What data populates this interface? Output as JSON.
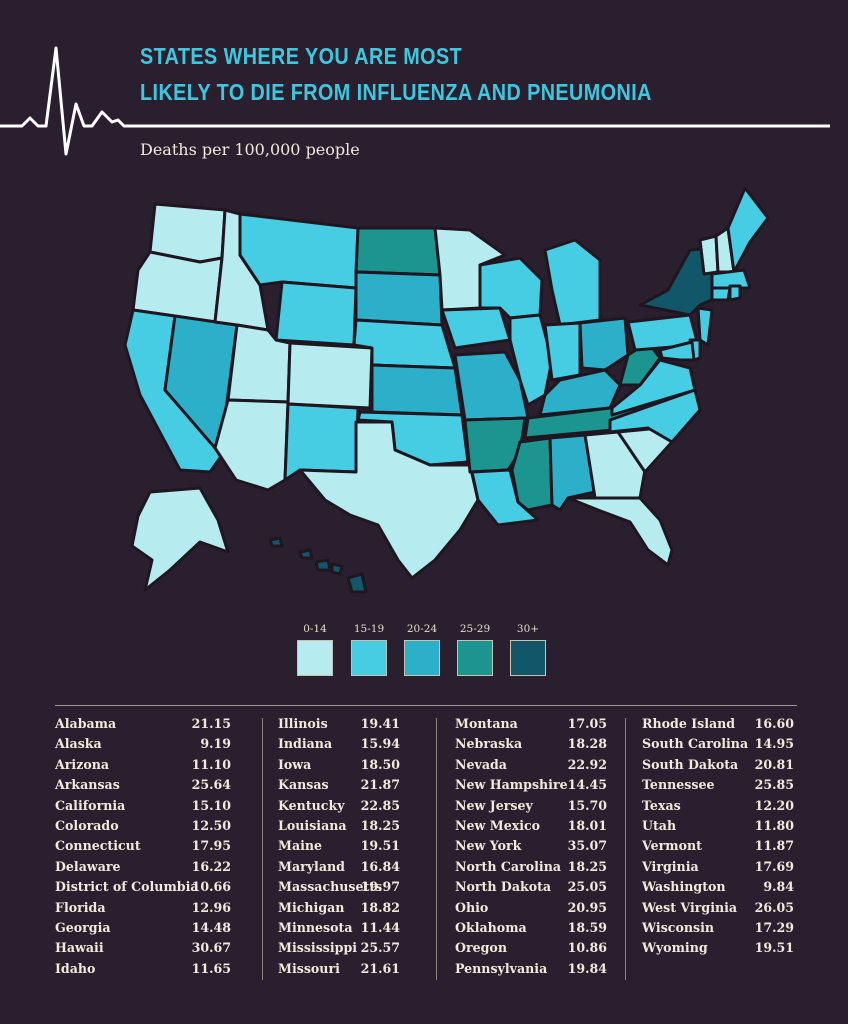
{
  "title": {
    "line1": "STATES WHERE YOU ARE MOST",
    "line2": "LIKELY TO DIE FROM INFLUENZA AND PNEUMONIA"
  },
  "subtitle": "Deaths per 100,000 people",
  "colors": {
    "background": "#2a1f2e",
    "title": "#3ec8e0",
    "bin_0_14": "#b6ebf0",
    "bin_15_19": "#46cde3",
    "bin_20_24": "#2cb0c9",
    "bin_25_29": "#1c9590",
    "bin_30_plus": "#12566a"
  },
  "legend": [
    {
      "label": "0-14",
      "color": "#b6ebf0"
    },
    {
      "label": "15-19",
      "color": "#46cde3"
    },
    {
      "label": "20-24",
      "color": "#2cb0c9"
    },
    {
      "label": "25-29",
      "color": "#1c9590"
    },
    {
      "label": "30+",
      "color": "#12566a"
    }
  ],
  "chart_data": {
    "type": "table",
    "columns": [
      "State",
      "Deaths per 100,000 people"
    ],
    "rows": [
      [
        "Alabama",
        "21.15"
      ],
      [
        "Alaska",
        "9.19"
      ],
      [
        "Arizona",
        "11.10"
      ],
      [
        "Arkansas",
        "25.64"
      ],
      [
        "California",
        "15.10"
      ],
      [
        "Colorado",
        "12.50"
      ],
      [
        "Connecticut",
        "17.95"
      ],
      [
        "Delaware",
        "16.22"
      ],
      [
        "District of Columbia",
        "10.66"
      ],
      [
        "Florida",
        "12.96"
      ],
      [
        "Georgia",
        "14.48"
      ],
      [
        "Hawaii",
        "30.67"
      ],
      [
        "Idaho",
        "11.65"
      ],
      [
        "Illinois",
        "19.41"
      ],
      [
        "Indiana",
        "15.94"
      ],
      [
        "Iowa",
        "18.50"
      ],
      [
        "Kansas",
        "21.87"
      ],
      [
        "Kentucky",
        "22.85"
      ],
      [
        "Louisiana",
        "18.25"
      ],
      [
        "Maine",
        "19.51"
      ],
      [
        "Maryland",
        "16.84"
      ],
      [
        "Massachusetts",
        "19.97"
      ],
      [
        "Michigan",
        "18.82"
      ],
      [
        "Minnesota",
        "11.44"
      ],
      [
        "Mississippi",
        "25.57"
      ],
      [
        "Missouri",
        "21.61"
      ],
      [
        "Montana",
        "17.05"
      ],
      [
        "Nebraska",
        "18.28"
      ],
      [
        "Nevada",
        "22.92"
      ],
      [
        "New Hampshire",
        "14.45"
      ],
      [
        "New Jersey",
        "15.70"
      ],
      [
        "New Mexico",
        "18.01"
      ],
      [
        "New York",
        "35.07"
      ],
      [
        "North Carolina",
        "18.25"
      ],
      [
        "North Dakota",
        "25.05"
      ],
      [
        "Ohio",
        "20.95"
      ],
      [
        "Oklahoma",
        "18.59"
      ],
      [
        "Oregon",
        "10.86"
      ],
      [
        "Pennsylvania",
        "19.84"
      ],
      [
        "Rhode Island",
        "16.60"
      ],
      [
        "South Carolina",
        "14.95"
      ],
      [
        "South Dakota",
        "20.81"
      ],
      [
        "Tennessee",
        "25.85"
      ],
      [
        "Texas",
        "12.20"
      ],
      [
        "Utah",
        "11.80"
      ],
      [
        "Vermont",
        "11.87"
      ],
      [
        "Virginia",
        "17.69"
      ],
      [
        "Washington",
        "9.84"
      ],
      [
        "West Virginia",
        "26.05"
      ],
      [
        "Wisconsin",
        "17.29"
      ],
      [
        "Wyoming",
        "19.51"
      ]
    ],
    "map_bins": {
      "WA": "bin_0_14",
      "OR": "bin_0_14",
      "CA": "bin_15_19",
      "NV": "bin_20_24",
      "ID": "bin_0_14",
      "MT": "bin_15_19",
      "WY": "bin_15_19",
      "UT": "bin_0_14",
      "AZ": "bin_0_14",
      "CO": "bin_0_14",
      "NM": "bin_15_19",
      "ND": "bin_25_29",
      "SD": "bin_20_24",
      "NE": "bin_15_19",
      "KS": "bin_20_24",
      "OK": "bin_15_19",
      "TX": "bin_0_14",
      "MN": "bin_0_14",
      "IA": "bin_15_19",
      "MO": "bin_20_24",
      "AR": "bin_25_29",
      "LA": "bin_15_19",
      "WI": "bin_15_19",
      "IL": "bin_15_19",
      "MI": "bin_15_19",
      "IN": "bin_15_19",
      "OH": "bin_20_24",
      "KY": "bin_20_24",
      "TN": "bin_25_29",
      "MS": "bin_25_29",
      "AL": "bin_20_24",
      "GA": "bin_0_14",
      "FL": "bin_0_14",
      "SC": "bin_0_14",
      "NC": "bin_15_19",
      "VA": "bin_15_19",
      "WV": "bin_25_29",
      "PA": "bin_15_19",
      "NY": "bin_30_plus",
      "VT": "bin_0_14",
      "NH": "bin_0_14",
      "ME": "bin_15_19",
      "MA": "bin_15_19",
      "CT": "bin_15_19",
      "RI": "bin_15_19",
      "NJ": "bin_15_19",
      "DE": "bin_15_19",
      "MD": "bin_15_19",
      "AK": "bin_0_14",
      "HI": "bin_30_plus"
    }
  }
}
